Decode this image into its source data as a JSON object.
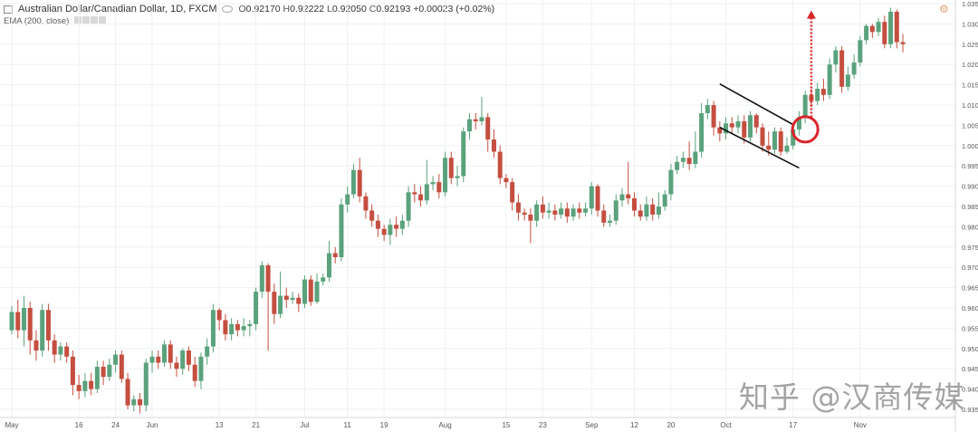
{
  "header": {
    "symbol": "Australian Dollar/Canadian Dollar, 1D, FXCM",
    "open_label": "O",
    "open": "0.92170",
    "high_label": "H",
    "high": "0.92222",
    "low_label": "L",
    "low": "0.92050",
    "close_label": "C",
    "close": "0.92193",
    "change": "+0.00023 (+0.02%)",
    "indicator": "EMA (200, close)"
  },
  "watermark": "知乎 @汉商传媒",
  "colors": {
    "up": "#5aa27c",
    "down": "#c44e3f",
    "arrow": "#d9262c",
    "grid": "#eef1f4",
    "channel": "#111111"
  },
  "chart_data": {
    "type": "candlestick",
    "title": "Australian Dollar/Canadian Dollar, 1D, FXCM",
    "indicator": "EMA (200, close)",
    "ylim": [
      0.935,
      1.035
    ],
    "y_ticks": [
      "1.03500",
      "1.03000",
      "1.02500",
      "1.02000",
      "1.01500",
      "1.01000",
      "1.00500",
      "1.00000",
      "0.99500",
      "0.99000",
      "0.98500",
      "0.98000",
      "0.97500",
      "0.97000",
      "0.96500",
      "0.96000",
      "0.95500",
      "0.95000",
      "0.94500",
      "0.94000",
      "0.93500"
    ],
    "x_tick_labels": [
      {
        "label": "May",
        "bar": 0
      },
      {
        "label": "16",
        "bar": 11
      },
      {
        "label": "24",
        "bar": 17
      },
      {
        "label": "Jun",
        "bar": 23
      },
      {
        "label": "13",
        "bar": 34
      },
      {
        "label": "21",
        "bar": 40
      },
      {
        "label": "Jul",
        "bar": 48
      },
      {
        "label": "11",
        "bar": 55
      },
      {
        "label": "19",
        "bar": 61
      },
      {
        "label": "Aug",
        "bar": 71
      },
      {
        "label": "15",
        "bar": 81
      },
      {
        "label": "23",
        "bar": 87
      },
      {
        "label": "Sep",
        "bar": 95
      },
      {
        "label": "12",
        "bar": 102
      },
      {
        "label": "20",
        "bar": 108
      },
      {
        "label": "Oct",
        "bar": 117
      },
      {
        "label": "17",
        "bar": 128
      },
      {
        "label": "Nov",
        "bar": 139
      }
    ],
    "candles": [
      [
        0.9545,
        0.959,
        0.9535,
        0.9605
      ],
      [
        0.959,
        0.9545,
        0.9525,
        0.962
      ],
      [
        0.9545,
        0.96,
        0.9505,
        0.963
      ],
      [
        0.96,
        0.952,
        0.9485,
        0.9615
      ],
      [
        0.952,
        0.9495,
        0.947,
        0.9545
      ],
      [
        0.9495,
        0.9595,
        0.948,
        0.961
      ],
      [
        0.9595,
        0.952,
        0.9495,
        0.961
      ],
      [
        0.952,
        0.9485,
        0.9465,
        0.9535
      ],
      [
        0.9485,
        0.9505,
        0.947,
        0.9515
      ],
      [
        0.9505,
        0.948,
        0.9465,
        0.9515
      ],
      [
        0.948,
        0.941,
        0.9385,
        0.9495
      ],
      [
        0.941,
        0.9395,
        0.9375,
        0.9435
      ],
      [
        0.9395,
        0.942,
        0.938,
        0.944
      ],
      [
        0.942,
        0.94,
        0.9385,
        0.944
      ],
      [
        0.94,
        0.9455,
        0.939,
        0.947
      ],
      [
        0.9455,
        0.943,
        0.941,
        0.947
      ],
      [
        0.943,
        0.946,
        0.942,
        0.9475
      ],
      [
        0.946,
        0.9485,
        0.944,
        0.9495
      ],
      [
        0.9485,
        0.9425,
        0.9415,
        0.9495
      ],
      [
        0.9425,
        0.936,
        0.935,
        0.944
      ],
      [
        0.936,
        0.9375,
        0.9345,
        0.9385
      ],
      [
        0.9375,
        0.936,
        0.934,
        0.939
      ],
      [
        0.936,
        0.9465,
        0.9345,
        0.9475
      ],
      [
        0.9465,
        0.948,
        0.944,
        0.9495
      ],
      [
        0.948,
        0.9465,
        0.945,
        0.9495
      ],
      [
        0.9465,
        0.951,
        0.9455,
        0.952
      ],
      [
        0.951,
        0.9465,
        0.945,
        0.952
      ],
      [
        0.9465,
        0.945,
        0.943,
        0.948
      ],
      [
        0.945,
        0.9495,
        0.9435,
        0.95
      ],
      [
        0.9495,
        0.946,
        0.9445,
        0.9505
      ],
      [
        0.946,
        0.942,
        0.9405,
        0.948
      ],
      [
        0.942,
        0.948,
        0.94,
        0.949
      ],
      [
        0.948,
        0.9505,
        0.946,
        0.9525
      ],
      [
        0.9505,
        0.9595,
        0.949,
        0.961
      ],
      [
        0.9595,
        0.957,
        0.9545,
        0.96
      ],
      [
        0.957,
        0.9535,
        0.952,
        0.9585
      ],
      [
        0.9535,
        0.956,
        0.952,
        0.9575
      ],
      [
        0.956,
        0.9545,
        0.953,
        0.957
      ],
      [
        0.9545,
        0.9555,
        0.953,
        0.9575
      ],
      [
        0.9555,
        0.956,
        0.953,
        0.957
      ],
      [
        0.956,
        0.964,
        0.9545,
        0.965
      ],
      [
        0.964,
        0.9705,
        0.9625,
        0.9715
      ],
      [
        0.9705,
        0.964,
        0.9495,
        0.971
      ],
      [
        0.964,
        0.9585,
        0.956,
        0.966
      ],
      [
        0.9585,
        0.963,
        0.9575,
        0.969
      ],
      [
        0.963,
        0.962,
        0.96,
        0.965
      ],
      [
        0.962,
        0.9625,
        0.961,
        0.964
      ],
      [
        0.9625,
        0.961,
        0.959,
        0.9635
      ],
      [
        0.961,
        0.967,
        0.96,
        0.968
      ],
      [
        0.967,
        0.9615,
        0.9605,
        0.968
      ],
      [
        0.9615,
        0.9665,
        0.961,
        0.9685
      ],
      [
        0.9665,
        0.9675,
        0.9655,
        0.9685
      ],
      [
        0.9675,
        0.9735,
        0.9665,
        0.9765
      ],
      [
        0.9735,
        0.9725,
        0.971,
        0.975
      ],
      [
        0.9725,
        0.9855,
        0.9715,
        0.987
      ],
      [
        0.9855,
        0.988,
        0.9835,
        0.99
      ],
      [
        0.988,
        0.994,
        0.987,
        0.9955
      ],
      [
        0.994,
        0.9875,
        0.986,
        0.997
      ],
      [
        0.9875,
        0.984,
        0.982,
        0.9885
      ],
      [
        0.984,
        0.9815,
        0.98,
        0.9855
      ],
      [
        0.9815,
        0.9795,
        0.9775,
        0.983
      ],
      [
        0.9795,
        0.978,
        0.9765,
        0.9805
      ],
      [
        0.978,
        0.9805,
        0.9755,
        0.982
      ],
      [
        0.9805,
        0.9795,
        0.9775,
        0.9825
      ],
      [
        0.9795,
        0.9815,
        0.978,
        0.983
      ],
      [
        0.9815,
        0.9885,
        0.98,
        0.99
      ],
      [
        0.9885,
        0.988,
        0.986,
        0.9905
      ],
      [
        0.988,
        0.9865,
        0.985,
        0.99
      ],
      [
        0.9865,
        0.9905,
        0.9855,
        0.9965
      ],
      [
        0.9905,
        0.991,
        0.989,
        0.9925
      ],
      [
        0.991,
        0.9885,
        0.987,
        0.993
      ],
      [
        0.9885,
        0.997,
        0.9875,
        0.9985
      ],
      [
        0.997,
        0.992,
        0.9905,
        0.9985
      ],
      [
        0.992,
        0.9925,
        0.99,
        0.995
      ],
      [
        0.9925,
        1.0035,
        0.991,
        1.0045
      ],
      [
        1.0035,
        1.0065,
        1.0015,
        1.008
      ],
      [
        1.0065,
        1.006,
        1.004,
        1.008
      ],
      [
        1.006,
        1.007,
        1.005,
        1.012
      ],
      [
        1.007,
        1.0015,
        0.9985,
        1.008
      ],
      [
        1.0015,
        0.9985,
        0.997,
        1.004
      ],
      [
        0.9985,
        0.992,
        0.9905,
        1.0
      ],
      [
        0.992,
        0.991,
        0.9895,
        0.993
      ],
      [
        0.991,
        0.986,
        0.984,
        0.992
      ],
      [
        0.986,
        0.9835,
        0.9815,
        0.988
      ],
      [
        0.9835,
        0.983,
        0.9815,
        0.9845
      ],
      [
        0.983,
        0.9815,
        0.976,
        0.9845
      ],
      [
        0.9815,
        0.9855,
        0.98,
        0.9865
      ],
      [
        0.9855,
        0.9835,
        0.982,
        0.9875
      ],
      [
        0.9835,
        0.984,
        0.982,
        0.986
      ],
      [
        0.984,
        0.983,
        0.9815,
        0.9855
      ],
      [
        0.983,
        0.9845,
        0.982,
        0.986
      ],
      [
        0.9845,
        0.9825,
        0.981,
        0.986
      ],
      [
        0.9825,
        0.9845,
        0.9815,
        0.9855
      ],
      [
        0.9845,
        0.9835,
        0.982,
        0.986
      ],
      [
        0.9835,
        0.9845,
        0.9825,
        0.986
      ],
      [
        0.9845,
        0.99,
        0.983,
        0.991
      ],
      [
        0.99,
        0.984,
        0.9825,
        0.9905
      ],
      [
        0.984,
        0.981,
        0.98,
        0.9855
      ],
      [
        0.981,
        0.9815,
        0.98,
        0.983
      ],
      [
        0.9815,
        0.9865,
        0.9805,
        0.988
      ],
      [
        0.9865,
        0.988,
        0.985,
        0.9895
      ],
      [
        0.988,
        0.987,
        0.9855,
        0.996
      ],
      [
        0.987,
        0.984,
        0.9825,
        0.9885
      ],
      [
        0.984,
        0.9825,
        0.9815,
        0.9855
      ],
      [
        0.9825,
        0.9855,
        0.9815,
        0.9875
      ],
      [
        0.9855,
        0.983,
        0.9815,
        0.987
      ],
      [
        0.983,
        0.985,
        0.982,
        0.9885
      ],
      [
        0.985,
        0.988,
        0.984,
        0.989
      ],
      [
        0.988,
        0.994,
        0.9865,
        0.9955
      ],
      [
        0.994,
        0.996,
        0.993,
        0.9975
      ],
      [
        0.996,
        0.997,
        0.9945,
        0.9985
      ],
      [
        0.997,
        0.9955,
        0.994,
        1.001
      ],
      [
        0.9955,
        0.9985,
        0.9945,
        1.0035
      ],
      [
        0.9985,
        1.008,
        0.997,
        1.0105
      ],
      [
        1.008,
        1.01,
        1.0065,
        1.0115
      ],
      [
        1.01,
        1.0045,
        1.0025,
        1.011
      ],
      [
        1.0045,
        1.003,
        1.001,
        1.006
      ],
      [
        1.003,
        1.0055,
        1.0015,
        1.007
      ],
      [
        1.0055,
        1.0045,
        1.003,
        1.007
      ],
      [
        1.0045,
        1.006,
        1.003,
        1.0075
      ],
      [
        1.006,
        1.002,
        1.0005,
        1.0075
      ],
      [
        1.002,
        1.0075,
        1.001,
        1.0085
      ],
      [
        1.0075,
        1.0045,
        1.003,
        1.008
      ],
      [
        1.0045,
        1.0,
        0.9985,
        1.0055
      ],
      [
        1.0,
        0.999,
        0.9975,
        1.0035
      ],
      [
        0.999,
        1.0035,
        0.998,
        1.0045
      ],
      [
        1.0035,
        0.9985,
        0.9975,
        1.0045
      ],
      [
        0.9985,
        1.0,
        0.998,
        1.002
      ],
      [
        1.0,
        1.004,
        0.999,
        1.0055
      ],
      [
        1.004,
        1.007,
        1.0025,
        1.0085
      ],
      [
        1.007,
        1.0125,
        1.0055,
        1.0135
      ],
      [
        1.0125,
        1.011,
        1.0095,
        1.014
      ],
      [
        1.011,
        1.014,
        1.01,
        1.0155
      ],
      [
        1.014,
        1.0125,
        1.011,
        1.0165
      ],
      [
        1.0125,
        1.02,
        1.0115,
        1.0215
      ],
      [
        1.02,
        1.0235,
        1.018,
        1.0245
      ],
      [
        1.0235,
        1.0145,
        1.013,
        1.0245
      ],
      [
        1.0145,
        1.0175,
        1.0135,
        1.0195
      ],
      [
        1.0175,
        1.0205,
        1.0165,
        1.0225
      ],
      [
        1.0205,
        1.026,
        1.0195,
        1.027
      ],
      [
        1.026,
        1.0295,
        1.025,
        1.03
      ],
      [
        1.0295,
        1.028,
        1.0265,
        1.03
      ],
      [
        1.028,
        1.0305,
        1.027,
        1.0315
      ],
      [
        1.0305,
        1.025,
        1.024,
        1.032
      ],
      [
        1.025,
        1.033,
        1.024,
        1.034
      ],
      [
        1.033,
        1.0255,
        1.024,
        1.0335
      ],
      [
        1.0255,
        1.025,
        1.023,
        1.0275
      ]
    ],
    "annotations": {
      "channel_upper": {
        "from": {
          "bar": 116,
          "price": 1.0152
        },
        "to": {
          "bar": 128,
          "price": 1.0052
        }
      },
      "channel_lower": {
        "from": {
          "bar": 116,
          "price": 1.0045
        },
        "to": {
          "bar": 129,
          "price": 0.9945
        }
      },
      "breakout_circle": {
        "bar": 130,
        "price": 1.004
      },
      "target_arrow": {
        "bar": 131,
        "from_price": 1.007,
        "to_price": 1.0333
      }
    }
  }
}
